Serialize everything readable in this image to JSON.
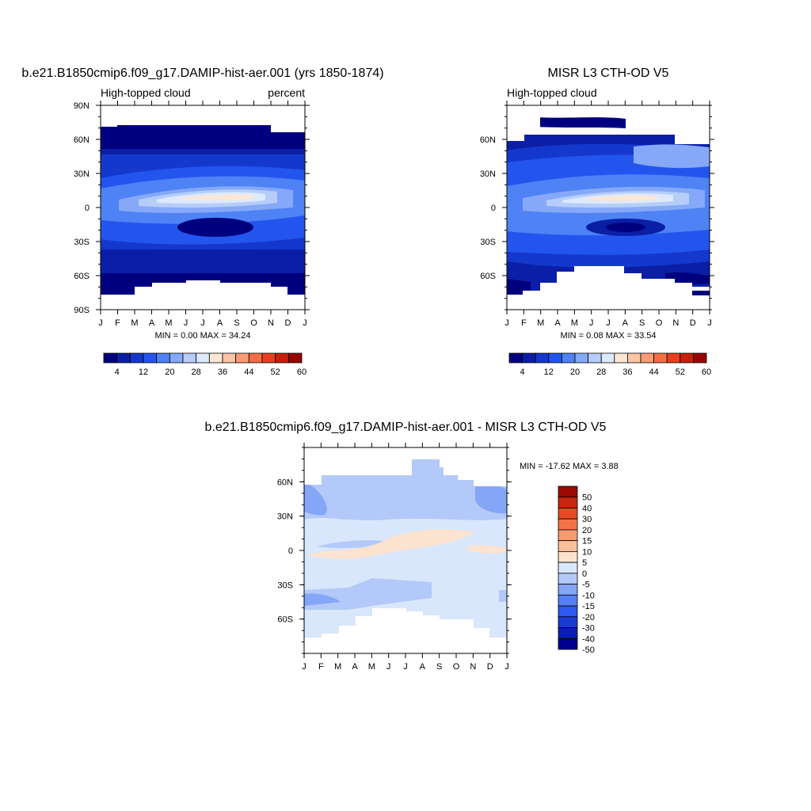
{
  "colors": {
    "model_obs_scale": [
      "#00007f",
      "#0a1fa6",
      "#1538cc",
      "#2355ee",
      "#4e82f5",
      "#86a8f8",
      "#b6cdfa",
      "#dde9fc",
      "#fde6d3",
      "#fcc5a5",
      "#fa9b73",
      "#f56d43",
      "#e8401e",
      "#c4200a",
      "#960600"
    ],
    "diff_scale": [
      "#00008f",
      "#0a1eb0",
      "#1a3bd3",
      "#2e58ef",
      "#5680f5",
      "#85a5f7",
      "#b3c9fa",
      "#d9e7fc",
      "#fce3cf",
      "#fbc09b",
      "#f99a6f",
      "#f37348",
      "#e84a22",
      "#c8250d",
      "#9b0a02"
    ],
    "land_none": "#ffffff"
  },
  "chart_data": [
    {
      "type": "heatmap",
      "id": "model",
      "title": "b.e21.B1850cmip6.f09_g17.DAMIP-hist-aer.001 (yrs 1850-1874)",
      "left_string": "High-topped cloud",
      "right_string": "percent",
      "x_tick_labels": [
        "J",
        "F",
        "M",
        "A",
        "M",
        "J",
        "J",
        "A",
        "S",
        "O",
        "N",
        "D",
        "J"
      ],
      "y_tick_labels": [
        "90N",
        "60N",
        "30N",
        "0",
        "30S",
        "60S",
        "90S"
      ],
      "y_range": [
        -90,
        90
      ],
      "stats_text": "MIN =   0.00 MAX =  34.24",
      "min": 0.0,
      "max": 34.24,
      "colorbar_labels": [
        "4",
        "12",
        "20",
        "28",
        "36",
        "44",
        "52",
        "60"
      ],
      "colorbar_orientation": "horizontal"
    },
    {
      "type": "heatmap",
      "id": "obs",
      "title": "MISR L3 CTH-OD V5",
      "left_string": "High-topped cloud",
      "right_string": "",
      "x_tick_labels": [
        "J",
        "F",
        "M",
        "A",
        "M",
        "J",
        "J",
        "A",
        "S",
        "O",
        "N",
        "D",
        "J"
      ],
      "y_tick_labels": [
        "60N",
        "30N",
        "0",
        "30S",
        "60S"
      ],
      "y_range": [
        -90,
        90
      ],
      "stats_text": "MIN =   0.08 MAX =  33.54",
      "min": 0.08,
      "max": 33.54,
      "colorbar_labels": [
        "4",
        "12",
        "20",
        "28",
        "36",
        "44",
        "52",
        "60"
      ],
      "colorbar_orientation": "horizontal"
    },
    {
      "type": "heatmap",
      "id": "diff",
      "title": "b.e21.B1850cmip6.f09_g17.DAMIP-hist-aer.001 - MISR L3 CTH-OD V5",
      "left_string": "",
      "right_string": "",
      "x_tick_labels": [
        "J",
        "F",
        "M",
        "A",
        "M",
        "J",
        "J",
        "A",
        "S",
        "O",
        "N",
        "D",
        "J"
      ],
      "y_tick_labels": [
        "60N",
        "30N",
        "0",
        "30S",
        "60S"
      ],
      "y_range": [
        -90,
        90
      ],
      "stats_text": "MIN = -17.62 MAX =   3.88",
      "min": -17.62,
      "max": 3.88,
      "colorbar_labels": [
        "50",
        "40",
        "30",
        "20",
        "15",
        "10",
        "5",
        "0",
        "-5",
        "-10",
        "-15",
        "-20",
        "-30",
        "-40",
        "-50"
      ],
      "colorbar_orientation": "vertical"
    }
  ]
}
